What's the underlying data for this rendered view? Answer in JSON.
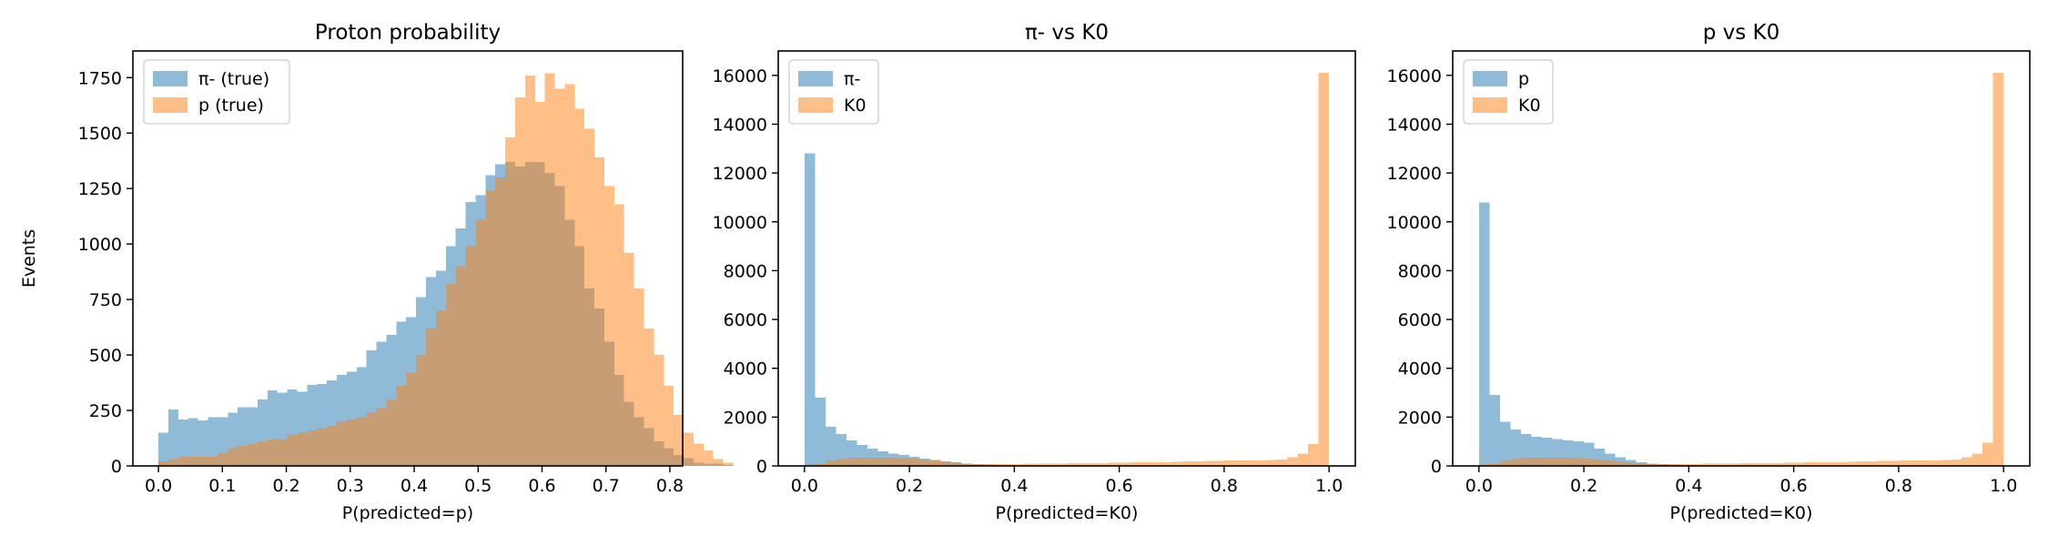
{
  "figure": {
    "colors": {
      "series1": "#1f77b4",
      "series2": "#ff7f0e",
      "alpha": 0.5
    },
    "bin_width": 0.02,
    "shared_ylabel": "Events"
  },
  "chart_data": [
    {
      "type": "bar",
      "subtype": "histogram",
      "title": "Proton probability",
      "xlabel": "P(predicted=p)",
      "ylabel": "Events",
      "xlim": [
        -0.04,
        0.82
      ],
      "ylim": [
        0,
        1870
      ],
      "xticks": [
        0.0,
        0.1,
        0.2,
        0.3,
        0.4,
        0.5,
        0.6,
        0.7,
        0.8
      ],
      "xtick_labels": [
        "0.0",
        "0.1",
        "0.2",
        "0.3",
        "0.4",
        "0.5",
        "0.6",
        "0.7",
        "0.8"
      ],
      "yticks": [
        0,
        250,
        500,
        750,
        1000,
        1250,
        1500,
        1750
      ],
      "ytick_labels": [
        "0",
        "250",
        "500",
        "750",
        "1000",
        "1250",
        "1500",
        "1750"
      ],
      "legend_position": "top-left",
      "bin_start": 0.0,
      "bin_width": 0.0155,
      "series": [
        {
          "name": "π- (true)",
          "color": "#1f77b4",
          "values": [
            150,
            255,
            210,
            215,
            205,
            220,
            220,
            240,
            265,
            265,
            300,
            340,
            330,
            345,
            335,
            365,
            370,
            385,
            410,
            425,
            445,
            520,
            560,
            590,
            650,
            670,
            760,
            850,
            880,
            990,
            1070,
            1190,
            1220,
            1310,
            1360,
            1370,
            1350,
            1370,
            1370,
            1320,
            1260,
            1110,
            990,
            800,
            710,
            560,
            410,
            290,
            220,
            170,
            110,
            80,
            50,
            35,
            15,
            10,
            10,
            5
          ]
        },
        {
          "name": "p (true)",
          "color": "#ff7f0e",
          "values": [
            20,
            30,
            40,
            40,
            40,
            40,
            60,
            80,
            90,
            100,
            110,
            120,
            120,
            140,
            150,
            160,
            170,
            180,
            200,
            210,
            220,
            240,
            260,
            300,
            360,
            420,
            500,
            620,
            700,
            820,
            900,
            990,
            1110,
            1240,
            1300,
            1480,
            1660,
            1760,
            1640,
            1770,
            1700,
            1720,
            1610,
            1520,
            1390,
            1260,
            1180,
            960,
            800,
            620,
            500,
            360,
            230,
            150,
            100,
            70,
            30,
            15
          ]
        }
      ]
    },
    {
      "type": "bar",
      "subtype": "histogram",
      "title": "π- vs K0",
      "xlabel": "P(predicted=K0)",
      "ylabel": "",
      "xlim": [
        -0.05,
        1.05
      ],
      "ylim": [
        0,
        17000
      ],
      "xticks": [
        0.0,
        0.2,
        0.4,
        0.6,
        0.8,
        1.0
      ],
      "xtick_labels": [
        "0.0",
        "0.2",
        "0.4",
        "0.6",
        "0.8",
        "1.0"
      ],
      "yticks": [
        0,
        2000,
        4000,
        6000,
        8000,
        10000,
        12000,
        14000,
        16000
      ],
      "ytick_labels": [
        "0",
        "2000",
        "4000",
        "6000",
        "8000",
        "10000",
        "12000",
        "14000",
        "16000"
      ],
      "legend_position": "top-left",
      "bin_start": 0.0,
      "bin_width": 0.02,
      "series": [
        {
          "name": "π-",
          "color": "#1f77b4",
          "values": [
            12800,
            2800,
            1600,
            1300,
            1050,
            850,
            700,
            600,
            500,
            450,
            380,
            300,
            240,
            180,
            140,
            100,
            70,
            50,
            40,
            30,
            20,
            15,
            10,
            10,
            5,
            5,
            5,
            0,
            0,
            0,
            0,
            0,
            0,
            0,
            0,
            0,
            0,
            0,
            0,
            0,
            0,
            0,
            0,
            0,
            0,
            0,
            0,
            0,
            0,
            0
          ]
        },
        {
          "name": "K0",
          "color": "#ff7f0e",
          "values": [
            50,
            80,
            200,
            280,
            330,
            340,
            340,
            330,
            330,
            320,
            300,
            260,
            220,
            170,
            130,
            100,
            80,
            70,
            70,
            80,
            80,
            90,
            90,
            100,
            100,
            110,
            110,
            120,
            120,
            130,
            130,
            140,
            140,
            150,
            150,
            170,
            180,
            190,
            200,
            210,
            220,
            220,
            230,
            230,
            240,
            260,
            350,
            500,
            900,
            16100
          ]
        }
      ]
    },
    {
      "type": "bar",
      "subtype": "histogram",
      "title": "p vs K0",
      "xlabel": "P(predicted=K0)",
      "ylabel": "",
      "xlim": [
        -0.05,
        1.05
      ],
      "ylim": [
        0,
        17000
      ],
      "xticks": [
        0.0,
        0.2,
        0.4,
        0.6,
        0.8,
        1.0
      ],
      "xtick_labels": [
        "0.0",
        "0.2",
        "0.4",
        "0.6",
        "0.8",
        "1.0"
      ],
      "yticks": [
        0,
        2000,
        4000,
        6000,
        8000,
        10000,
        12000,
        14000,
        16000
      ],
      "ytick_labels": [
        "0",
        "2000",
        "4000",
        "6000",
        "8000",
        "10000",
        "12000",
        "14000",
        "16000"
      ],
      "legend_position": "top-left",
      "bin_start": 0.0,
      "bin_width": 0.02,
      "series": [
        {
          "name": "p",
          "color": "#1f77b4",
          "values": [
            10800,
            2900,
            1800,
            1500,
            1300,
            1200,
            1150,
            1100,
            1050,
            1000,
            950,
            700,
            500,
            350,
            250,
            150,
            100,
            80,
            60,
            40,
            30,
            20,
            15,
            10,
            5,
            5,
            0,
            0,
            0,
            0,
            0,
            0,
            0,
            0,
            0,
            0,
            0,
            0,
            0,
            0,
            0,
            0,
            0,
            0,
            0,
            0,
            0,
            0,
            0,
            0
          ]
        },
        {
          "name": "K0",
          "color": "#ff7f0e",
          "values": [
            50,
            80,
            200,
            280,
            330,
            340,
            340,
            330,
            330,
            320,
            300,
            260,
            220,
            170,
            130,
            100,
            80,
            70,
            70,
            80,
            80,
            90,
            90,
            100,
            100,
            110,
            110,
            120,
            120,
            130,
            130,
            140,
            140,
            150,
            150,
            170,
            180,
            190,
            200,
            210,
            220,
            220,
            230,
            230,
            240,
            260,
            350,
            500,
            950,
            16100
          ]
        }
      ]
    }
  ]
}
